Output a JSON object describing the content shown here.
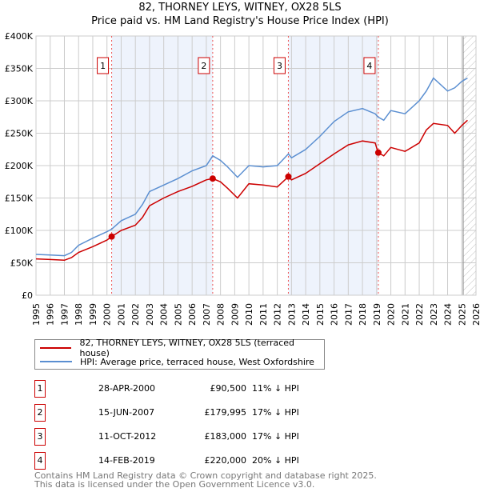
{
  "chart_data": {
    "type": "line",
    "title": "82, THORNEY LEYS, WITNEY, OX28 5LS",
    "subtitle": "Price paid vs. HM Land Registry's House Price Index (HPI)",
    "xlim": [
      1995,
      2026
    ],
    "ylim": [
      0,
      400000
    ],
    "y_ticks": [
      0,
      50000,
      100000,
      150000,
      200000,
      250000,
      300000,
      350000,
      400000
    ],
    "y_tick_labels": [
      "£0",
      "£50K",
      "£100K",
      "£150K",
      "£200K",
      "£250K",
      "£300K",
      "£350K",
      "£400K"
    ],
    "x_ticks": [
      "1995",
      "1996",
      "1997",
      "1998",
      "1999",
      "2000",
      "2001",
      "2002",
      "2003",
      "2004",
      "2005",
      "2006",
      "2007",
      "2008",
      "2009",
      "2010",
      "2011",
      "2012",
      "2013",
      "2014",
      "2015",
      "2016",
      "2017",
      "2018",
      "2019",
      "2020",
      "2021",
      "2022",
      "2023",
      "2024",
      "2025",
      "2026"
    ],
    "grid": true,
    "forecast_start": 2025.1,
    "series": [
      {
        "name": "82, THORNEY LEYS, WITNEY, OX28 5LS (terraced house)",
        "color": "#cc0000",
        "x": [
          1995,
          1996,
          1997,
          1997.5,
          1998,
          1999,
          2000,
          2000.33,
          2001,
          2002,
          2002.5,
          2003,
          2004,
          2005,
          2006,
          2007,
          2007.45,
          2008,
          2008.5,
          2009.2,
          2010,
          2011,
          2012,
          2012.78,
          2013,
          2014,
          2015,
          2016,
          2017,
          2018,
          2018.9,
          2019.1,
          2019.5,
          2020,
          2021,
          2022,
          2022.5,
          2023,
          2024,
          2024.5,
          2025,
          2025.4
        ],
        "y": [
          56000,
          55000,
          54000,
          58000,
          66000,
          75000,
          85000,
          90500,
          100000,
          108000,
          120000,
          138000,
          150000,
          160000,
          168000,
          178000,
          179995,
          175000,
          165000,
          150000,
          172000,
          170000,
          167000,
          183000,
          178000,
          188000,
          203000,
          218000,
          232000,
          238000,
          235000,
          220000,
          215000,
          228000,
          222000,
          235000,
          255000,
          265000,
          262000,
          250000,
          262000,
          270000
        ]
      },
      {
        "name": "HPI: Average price, terraced house, West Oxfordshire",
        "color": "#5b8fd1",
        "x": [
          1995,
          1996,
          1997,
          1997.5,
          1998,
          1999,
          2000,
          2000.33,
          2001,
          2002,
          2002.5,
          2003,
          2004,
          2005,
          2006,
          2007,
          2007.45,
          2008,
          2008.5,
          2009.2,
          2010,
          2011,
          2012,
          2012.78,
          2013,
          2014,
          2015,
          2016,
          2017,
          2018,
          2018.9,
          2019.1,
          2019.5,
          2020,
          2021,
          2022,
          2022.5,
          2023,
          2024,
          2024.5,
          2025,
          2025.4
        ],
        "y": [
          63000,
          62000,
          61000,
          66000,
          77000,
          88000,
          98000,
          102000,
          115000,
          125000,
          140000,
          160000,
          170000,
          180000,
          192000,
          200000,
          215000,
          208000,
          198000,
          182000,
          200000,
          198000,
          200000,
          218000,
          212000,
          225000,
          245000,
          268000,
          283000,
          288000,
          280000,
          275000,
          270000,
          285000,
          280000,
          300000,
          315000,
          335000,
          315000,
          320000,
          330000,
          335000
        ]
      }
    ],
    "sales": [
      {
        "n": "1",
        "x": 2000.33,
        "y": 90500
      },
      {
        "n": "2",
        "x": 2007.45,
        "y": 179995
      },
      {
        "n": "3",
        "x": 2012.78,
        "y": 183000
      },
      {
        "n": "4",
        "x": 2019.12,
        "y": 220000
      }
    ]
  },
  "legend": {
    "red": "82, THORNEY LEYS, WITNEY, OX28 5LS (terraced house)",
    "blue": "HPI: Average price, terraced house, West Oxfordshire"
  },
  "transactions": [
    {
      "n": "1",
      "date": "28-APR-2000",
      "price": "£90,500",
      "hpi": "11% ↓ HPI"
    },
    {
      "n": "2",
      "date": "15-JUN-2007",
      "price": "£179,995",
      "hpi": "17% ↓ HPI"
    },
    {
      "n": "3",
      "date": "11-OCT-2012",
      "price": "£183,000",
      "hpi": "17% ↓ HPI"
    },
    {
      "n": "4",
      "date": "14-FEB-2019",
      "price": "£220,000",
      "hpi": "20% ↓ HPI"
    }
  ],
  "footer": {
    "line1": "Contains HM Land Registry data © Crown copyright and database right 2025.",
    "line2": "This data is licensed under the Open Government Licence v3.0."
  }
}
